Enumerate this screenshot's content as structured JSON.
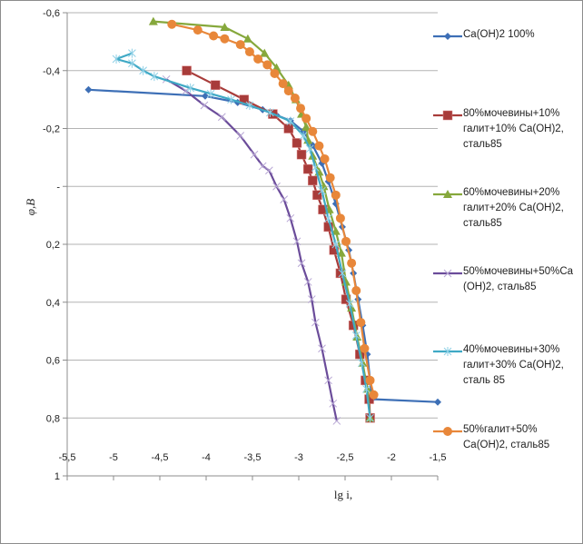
{
  "chart_data": {
    "type": "line",
    "title": "",
    "xlabel": "lg i,",
    "ylabel": "φ,B",
    "xlim": [
      -5.5,
      -1.5
    ],
    "ylim": [
      -0.6,
      1
    ],
    "y_inverted": true,
    "grid": "horizontal",
    "legend_placement": "right",
    "x_ticks": [
      "-5,5",
      "-5",
      "-4,5",
      "-4",
      "-3,5",
      "-3",
      "-2,5",
      "-2",
      "-1,5"
    ],
    "x_tick_values": [
      -5.5,
      -5,
      -4.5,
      -4,
      -3.5,
      -3,
      -2.5,
      -2,
      -1.5
    ],
    "y_ticks": [
      "-0,6",
      "-0,4",
      "-0,2",
      "-",
      "0,2",
      "0,4",
      "0,6",
      "0,8",
      "1"
    ],
    "y_tick_values": [
      -0.6,
      -0.4,
      -0.2,
      0,
      0.2,
      0.4,
      0.6,
      0.8,
      1
    ],
    "series": [
      {
        "name": "Ca(OH)2 100%",
        "color": "#3d6fb6",
        "marker": "diamond",
        "x": [
          -5.27,
          -4.01,
          -3.66,
          -3.39,
          -3.24,
          -3.09,
          -2.95,
          -2.85,
          -2.75,
          -2.68,
          -2.6,
          -2.53,
          -2.46,
          -2.41,
          -2.36,
          -2.31,
          -2.26,
          -2.23,
          -2.21,
          -1.5
        ],
        "y": [
          -0.334,
          -0.312,
          -0.29,
          -0.265,
          -0.246,
          -0.227,
          -0.19,
          -0.142,
          -0.08,
          -0.017,
          0.06,
          0.14,
          0.22,
          0.3,
          0.39,
          0.48,
          0.58,
          0.67,
          0.735,
          0.745
        ]
      },
      {
        "name": "80%мочевины+10% галит+10% Ca(OH)2, сталь85",
        "color": "#a83c3a",
        "marker": "square",
        "x": [
          -4.21,
          -3.9,
          -3.59,
          -3.28,
          -3.11,
          -3.02,
          -2.97,
          -2.9,
          -2.85,
          -2.8,
          -2.74,
          -2.68,
          -2.62,
          -2.55,
          -2.49,
          -2.41,
          -2.34,
          -2.28,
          -2.24,
          -2.23
        ],
        "y": [
          -0.4,
          -0.35,
          -0.3,
          -0.25,
          -0.2,
          -0.15,
          -0.11,
          -0.06,
          -0.02,
          0.03,
          0.08,
          0.14,
          0.22,
          0.3,
          0.39,
          0.48,
          0.58,
          0.67,
          0.735,
          0.8
        ]
      },
      {
        "name": "60%мочевины+20% галит+20% Ca(OH)2, сталь85",
        "color": "#86a83c",
        "marker": "triangle",
        "x": [
          -4.57,
          -3.8,
          -3.55,
          -3.37,
          -3.24,
          -3.11,
          -3.03,
          -2.97,
          -2.92,
          -2.9,
          -2.85,
          -2.78,
          -2.73,
          -2.67,
          -2.6,
          -2.54,
          -2.49,
          -2.43,
          -2.37,
          -2.31,
          -2.26,
          -2.23
        ],
        "y": [
          -0.57,
          -0.55,
          -0.51,
          -0.46,
          -0.41,
          -0.35,
          -0.3,
          -0.25,
          -0.205,
          -0.16,
          -0.105,
          -0.05,
          0.0,
          0.08,
          0.155,
          0.23,
          0.33,
          0.42,
          0.52,
          0.61,
          0.7,
          0.8
        ]
      },
      {
        "name": "50%мочевины+50%Ca (OH)2, сталь85",
        "color": "#6b4c9a",
        "marker": "x",
        "x": [
          -4.43,
          -4.22,
          -4.02,
          -3.83,
          -3.63,
          -3.48,
          -3.39,
          -3.32,
          -3.24,
          -3.16,
          -3.09,
          -3.02,
          -2.97,
          -2.9,
          -2.86,
          -2.82,
          -2.75,
          -2.68,
          -2.63,
          -2.59
        ],
        "y": [
          -0.37,
          -0.33,
          -0.28,
          -0.24,
          -0.175,
          -0.11,
          -0.07,
          -0.055,
          0.0,
          0.045,
          0.11,
          0.19,
          0.265,
          0.33,
          0.39,
          0.47,
          0.56,
          0.67,
          0.75,
          0.81
        ]
      },
      {
        "name": "40%мочевины+30% галит+30% Ca(OH)2, сталь 85",
        "color": "#3fa9c5",
        "marker": "asterisk",
        "x": [
          -4.8,
          -4.97,
          -4.8,
          -4.68,
          -4.56,
          -4.17,
          -3.95,
          -3.73,
          -3.53,
          -3.31,
          -3.09,
          -2.95,
          -2.88,
          -2.82,
          -2.75,
          -2.68,
          -2.6,
          -2.53,
          -2.45,
          -2.38,
          -2.32,
          -2.27,
          -2.23
        ],
        "y": [
          -0.46,
          -0.44,
          -0.425,
          -0.4,
          -0.38,
          -0.34,
          -0.32,
          -0.3,
          -0.28,
          -0.255,
          -0.225,
          -0.175,
          -0.13,
          -0.065,
          0.015,
          0.11,
          0.2,
          0.3,
          0.405,
          0.515,
          0.61,
          0.7,
          0.8
        ]
      },
      {
        "name": "50%галит+50% Ca(OH)2, сталь85",
        "color": "#e8873a",
        "marker": "circle",
        "x": [
          -4.37,
          -4.09,
          -3.92,
          -3.8,
          -3.63,
          -3.53,
          -3.44,
          -3.34,
          -3.26,
          -3.17,
          -3.11,
          -3.04,
          -2.98,
          -2.92,
          -2.85,
          -2.78,
          -2.72,
          -2.66,
          -2.6,
          -2.55,
          -2.49,
          -2.43,
          -2.38,
          -2.33,
          -2.29,
          -2.23,
          -2.19
        ],
        "y": [
          -0.56,
          -0.54,
          -0.52,
          -0.51,
          -0.49,
          -0.465,
          -0.44,
          -0.42,
          -0.39,
          -0.355,
          -0.33,
          -0.305,
          -0.27,
          -0.235,
          -0.19,
          -0.14,
          -0.095,
          -0.03,
          0.03,
          0.11,
          0.19,
          0.265,
          0.36,
          0.47,
          0.56,
          0.67,
          0.72
        ]
      }
    ]
  }
}
